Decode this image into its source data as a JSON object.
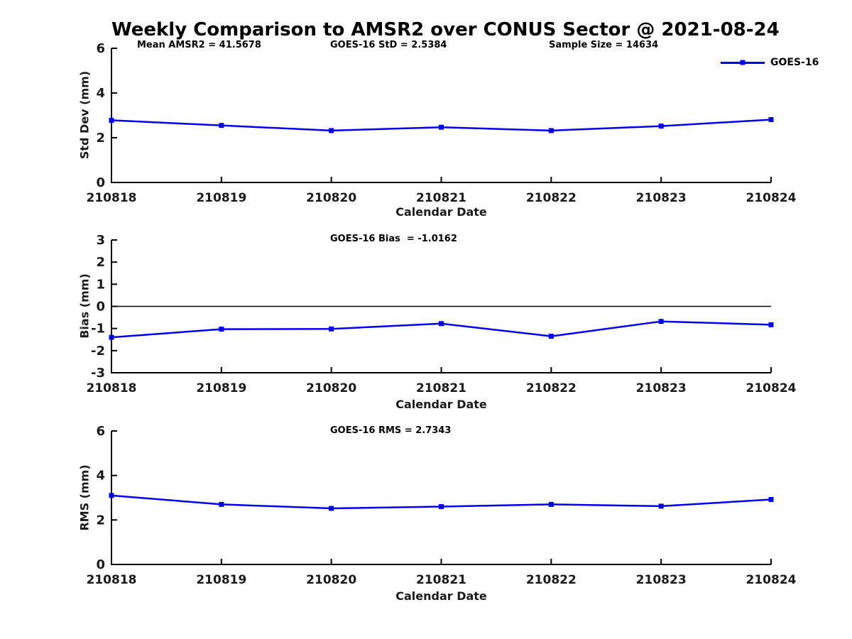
{
  "title": "Weekly Comparison to AMSR2 over CONUS Sector @ 2021-08-24",
  "colors": {
    "series": "#0000f0",
    "axis": "#000000",
    "tick_label": "#1a1a1a",
    "background": "#ffffff"
  },
  "chart_data": [
    {
      "type": "line",
      "marker": "square",
      "grid": false,
      "legend_position": "top-right",
      "xlabel": "Calendar Date",
      "ylabel": "Std Dev (mm)",
      "ylim": [
        0,
        6
      ],
      "yticks": [
        0,
        2,
        4,
        6
      ],
      "categories": [
        "210818",
        "210819",
        "210820",
        "210821",
        "210822",
        "210823",
        "210824"
      ],
      "series": [
        {
          "name": "GOES-16",
          "values": [
            2.78,
            2.55,
            2.32,
            2.47,
            2.32,
            2.52,
            2.81
          ]
        }
      ],
      "annotations": [
        {
          "text": "Mean AMSR2 = 41.5678"
        },
        {
          "text": "GOES-16 StD = 2.5384"
        },
        {
          "text": "Sample Size = 14634"
        }
      ]
    },
    {
      "type": "line",
      "marker": "square",
      "grid": false,
      "zero_line": true,
      "xlabel": "Calendar Date",
      "ylabel": "Bias (mm)",
      "ylim": [
        -3,
        3
      ],
      "yticks": [
        -3,
        -2,
        -1,
        0,
        1,
        2,
        3
      ],
      "categories": [
        "210818",
        "210819",
        "210820",
        "210821",
        "210822",
        "210823",
        "210824"
      ],
      "series": [
        {
          "name": "GOES-16",
          "values": [
            -1.4,
            -1.03,
            -1.02,
            -0.78,
            -1.35,
            -0.68,
            -0.83
          ]
        }
      ],
      "annotations": [
        {
          "text": "GOES-16 Bias  = -1.0162"
        }
      ]
    },
    {
      "type": "line",
      "marker": "square",
      "grid": false,
      "xlabel": "Calendar Date",
      "ylabel": "RMS (mm)",
      "ylim": [
        0,
        6
      ],
      "yticks": [
        0,
        2,
        4,
        6
      ],
      "categories": [
        "210818",
        "210819",
        "210820",
        "210821",
        "210822",
        "210823",
        "210824"
      ],
      "series": [
        {
          "name": "GOES-16",
          "values": [
            3.1,
            2.7,
            2.52,
            2.6,
            2.7,
            2.62,
            2.92
          ]
        }
      ],
      "annotations": [
        {
          "text": "GOES-16 RMS = 2.7343"
        }
      ]
    }
  ]
}
